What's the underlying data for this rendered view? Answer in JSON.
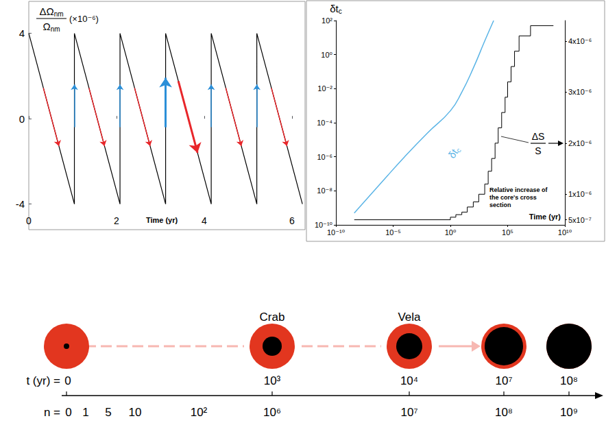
{
  "chart_data": [
    {
      "type": "line",
      "y_label": {
        "numerator": {
          "base": "ΔΩ",
          "sub": "nm"
        },
        "denominator": {
          "base": "Ω",
          "sub": "nm"
        },
        "unit": "(×10⁻⁶)"
      },
      "x_label": "Time (yr)",
      "x": [
        0,
        1.04,
        1.04,
        2.08,
        2.08,
        3.12,
        3.12,
        4.16,
        4.16,
        5.2,
        5.2,
        6.24
      ],
      "values": [
        4,
        -4,
        4,
        -4,
        4,
        -4,
        4,
        -4,
        4,
        -4,
        4,
        -4
      ],
      "color": "#000000",
      "xlim": [
        0,
        6.3
      ],
      "xticks": [
        0,
        2,
        4,
        6
      ],
      "ylim": [
        -5.2,
        5.5
      ],
      "yticks": [
        -4,
        0,
        4
      ]
    },
    {
      "type": "line",
      "log": true,
      "y_label": {
        "base": "δt",
        "sub": "c"
      },
      "x_label": "Time (yr)",
      "annotation": "Relative increase of the core's cross section",
      "xlim": [
        1e-10,
        10000000000.0
      ],
      "xticks": [
        {
          "value": 1e-10,
          "label": "10⁻¹⁰"
        },
        {
          "value": 1e-05,
          "label": "10⁻⁵"
        },
        {
          "value": 1,
          "label": "10⁰"
        },
        {
          "value": 100000,
          "label": "10⁵"
        },
        {
          "value": 10000000000.0,
          "label": "10¹⁰"
        }
      ],
      "ylim": [
        1e-10,
        100
      ],
      "yticks": [
        {
          "value": 1e-10,
          "label": "10⁻¹⁰"
        },
        {
          "value": 1e-08,
          "label": "10⁻⁸"
        },
        {
          "value": 1e-06,
          "label": "10⁻⁶"
        },
        {
          "value": 0.0001,
          "label": "10⁻⁴"
        },
        {
          "value": 0.01,
          "label": "10⁻²"
        },
        {
          "value": 1,
          "label": "10⁰"
        },
        {
          "value": 100,
          "label": "10²"
        }
      ],
      "y2lim": [
        4e-07,
        4.4e-06
      ],
      "y2ticks": [
        {
          "value": 5e-07,
          "label": "5x10⁻⁷"
        },
        {
          "value": 1e-06,
          "label": "1x10⁻⁶"
        },
        {
          "value": 2e-06,
          "label": "2x10⁻⁶"
        },
        {
          "value": 3e-06,
          "label": "3x10⁻⁶"
        },
        {
          "value": 4e-06,
          "label": "4x10⁻⁶"
        }
      ],
      "series": [
        {
          "label": {
            "base": "δt",
            "sub": "c"
          },
          "color": "#5ab4e6",
          "x": [
            4e-09,
            1e-06,
            0.0001,
            0.01,
            1,
            10,
            100,
            1000,
            6000
          ],
          "values": [
            5e-10,
            3.2e-08,
            1e-06,
            2.5e-05,
            0.0005,
            0.0063,
            0.16,
            6.3,
            100
          ]
        },
        {
          "label": {
            "numerator": "ΔS",
            "denominator": "S"
          },
          "axis": "y2",
          "type": "step",
          "color": "#000000",
          "x": [
            4e-09,
            1,
            3,
            10,
            30,
            100,
            300,
            1000,
            2000,
            4000,
            8000,
            15000,
            30000,
            60000,
            100000,
            200000,
            400000,
            1000000,
            10000000,
            1000000000
          ],
          "values": [
            5e-07,
            5.5e-07,
            6e-07,
            6.5e-07,
            7.5e-07,
            8.5e-07,
            1e-06,
            1.2e-06,
            1.45e-06,
            1.7e-06,
            2e-06,
            2.3e-06,
            2.6e-06,
            2.9e-06,
            3.2e-06,
            3.5e-06,
            3.8e-06,
            4.1e-06,
            4.3e-06,
            4.3e-06
          ]
        }
      ]
    }
  ],
  "diagram": {
    "stages": [
      {
        "t": "0"
      },
      {
        "t": "10³",
        "label": "Crab"
      },
      {
        "t": "10⁴",
        "label": "Vela"
      },
      {
        "t": "10⁷"
      },
      {
        "t": "10⁸"
      }
    ],
    "t_label": "t (yr) =",
    "n_label": "n =",
    "n_values": [
      "0",
      "1",
      "5",
      "10",
      "10²",
      "10⁶",
      "10⁷",
      "10⁸",
      "10⁹"
    ]
  }
}
